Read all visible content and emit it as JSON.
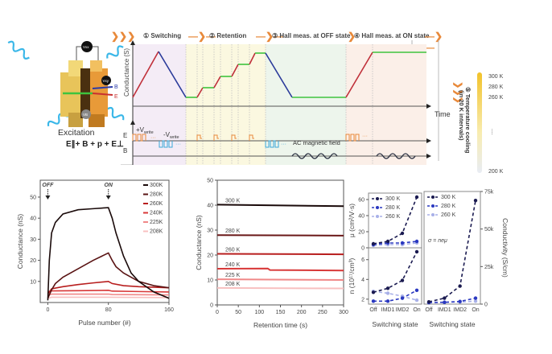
{
  "schematic": {
    "steps": [
      {
        "num": "①",
        "label": "Switching"
      },
      {
        "num": "②",
        "label": "Retention"
      },
      {
        "num": "③",
        "label": "Hall meas. at OFF state"
      },
      {
        "num": "④",
        "label": "Hall meas. at ON state"
      }
    ],
    "step5": {
      "num": "⑤",
      "label": "Temperature cooling",
      "sublabel": "(in 20 K intervals)"
    },
    "temp_scale": [
      "300 K",
      "280 K",
      "260 K",
      "....",
      "200 K"
    ],
    "conductance_axis": "Conductance (S)",
    "time_axis": "Time",
    "e_row": "E",
    "b_row": "B",
    "vwrite_pos": "+V",
    "vwrite_neg": "-V",
    "vwrite_sub": "write",
    "ac_field": "AC magnetic field",
    "ellipsis": "···",
    "device": {
      "excitation_label": "Excitation",
      "formula": "E∥+ B + p + E⊥",
      "meters": [
        "Vxx",
        "Vxy",
        "VB"
      ],
      "arrows": [
        "B",
        "E"
      ],
      "wave_label": "p"
    },
    "colors": {
      "rise": "#c0303a",
      "fall": "#2a3a9a",
      "hold": "#3ec43e",
      "pulse_e": "#e8893a",
      "pulse_b": "#3aa7d8",
      "temp_top": "#f2c22a"
    }
  },
  "chart_data": [
    {
      "type": "line",
      "title": "",
      "xlabel": "Pulse number (#)",
      "ylabel": "Conductance (nS)",
      "xlim": [
        -10,
        160
      ],
      "ylim": [
        0,
        58
      ],
      "xticks": [
        0,
        80,
        160
      ],
      "yticks": [
        10,
        20,
        30,
        40,
        50
      ],
      "annotations": [
        {
          "text": "OFF",
          "x": 0
        },
        {
          "text": "ON",
          "x": 80
        }
      ],
      "legend_position": "top-right",
      "series": [
        {
          "name": "300K",
          "color": "#1a0a0a",
          "x": [
            0,
            2,
            5,
            10,
            20,
            40,
            60,
            80,
            85,
            90,
            100,
            110,
            120,
            140,
            160
          ],
          "y": [
            1,
            20,
            33,
            38,
            42,
            44,
            44.5,
            45,
            40,
            33,
            22,
            14,
            10,
            5,
            2
          ]
        },
        {
          "name": "280K",
          "color": "#5a1414",
          "x": [
            0,
            5,
            10,
            20,
            40,
            60,
            80,
            85,
            90,
            100,
            120,
            140,
            160
          ],
          "y": [
            2,
            6,
            9,
            12,
            16,
            20,
            23.5,
            20,
            17,
            14,
            10,
            8,
            7
          ]
        },
        {
          "name": "260K",
          "color": "#b81e1e",
          "x": [
            0,
            5,
            20,
            40,
            60,
            80,
            85,
            100,
            120,
            160
          ],
          "y": [
            4,
            6.5,
            7.5,
            8.5,
            9.3,
            10,
            9,
            8,
            7.5,
            7
          ]
        },
        {
          "name": "240K",
          "color": "#d83838",
          "x": [
            0,
            5,
            40,
            80,
            85,
            120,
            160
          ],
          "y": [
            5,
            5.5,
            5.6,
            5.8,
            5.4,
            5.2,
            5
          ]
        },
        {
          "name": "225K",
          "color": "#f08888",
          "x": [
            0,
            5,
            80,
            85,
            160
          ],
          "y": [
            3.5,
            4,
            4,
            3.8,
            3.6
          ]
        },
        {
          "name": "208K",
          "color": "#f8c0c0",
          "x": [
            0,
            5,
            80,
            160
          ],
          "y": [
            2,
            2.5,
            2.5,
            2.3
          ]
        }
      ]
    },
    {
      "type": "line",
      "title": "",
      "xlabel": "Retention time (s)",
      "ylabel": "Conductance (nS)",
      "xlim": [
        0,
        300
      ],
      "ylim": [
        0,
        50
      ],
      "xticks": [
        0,
        50,
        100,
        150,
        200,
        250,
        300
      ],
      "yticks": [
        0,
        10,
        20,
        30,
        40,
        50
      ],
      "series": [
        {
          "name": "300 K",
          "color": "#1a0a0a",
          "x": [
            0,
            300
          ],
          "y": [
            40.2,
            39.6
          ]
        },
        {
          "name": "280 K",
          "color": "#6a1818",
          "x": [
            0,
            300
          ],
          "y": [
            28,
            27.8
          ]
        },
        {
          "name": "260 K",
          "color": "#b81e1e",
          "x": [
            0,
            300
          ],
          "y": [
            20.5,
            20.3
          ]
        },
        {
          "name": "240 K",
          "color": "#d83838",
          "x": [
            0,
            120,
            125,
            300
          ],
          "y": [
            14.5,
            14.6,
            14,
            13.8
          ]
        },
        {
          "name": "225 K",
          "color": "#f08888",
          "x": [
            0,
            300
          ],
          "y": [
            10.3,
            10
          ]
        },
        {
          "name": "208 K",
          "color": "#f8c0c0",
          "x": [
            0,
            300
          ],
          "y": [
            6.8,
            6.6
          ]
        }
      ]
    },
    {
      "type": "line",
      "title": "",
      "xlabel": "",
      "ylabel": "μ (cm²/V·s)",
      "categories": [
        "Off",
        "IMD1",
        "IMD2",
        "On"
      ],
      "ylim": [
        0,
        68
      ],
      "yticks": [
        0,
        20,
        40,
        60
      ],
      "legend_position": "top-left",
      "series": [
        {
          "name": "300 K",
          "color": "#1a1a50",
          "values": [
            5,
            8,
            18,
            63
          ]
        },
        {
          "name": "280 K",
          "color": "#2a38c0",
          "values": [
            4,
            6,
            6,
            8
          ]
        },
        {
          "name": "260 K",
          "color": "#a8b0e8",
          "values": [
            3,
            4,
            4,
            6
          ]
        }
      ]
    },
    {
      "type": "line",
      "title": "",
      "xlabel": "Switching state",
      "ylabel": "n (10¹⁷/cm³)",
      "categories": [
        "Off",
        "IMD1",
        "IMD2",
        "On"
      ],
      "ylim": [
        1.5,
        7.2
      ],
      "yticks": [
        2,
        4,
        6
      ],
      "series": [
        {
          "name": "300 K",
          "color": "#1a1a50",
          "values": [
            2.7,
            3.1,
            3.9,
            6.8
          ]
        },
        {
          "name": "280 K",
          "color": "#2a38c0",
          "values": [
            1.8,
            1.8,
            2.1,
            2.9
          ]
        },
        {
          "name": "260 K",
          "color": "#a8b0e8",
          "values": [
            2.8,
            2.6,
            2.3,
            1.9
          ]
        }
      ]
    },
    {
      "type": "line",
      "title": "",
      "xlabel": "Switching state",
      "ylabel": "Conductivity (S/cm)",
      "categories": [
        "Off",
        "IMD1",
        "IMD2",
        "On"
      ],
      "ylim": [
        0,
        75000
      ],
      "yticks": [
        "0",
        "25k",
        "50k",
        "75k"
      ],
      "ytick_values": [
        0,
        25000,
        50000,
        75000
      ],
      "annotation": "σ = neμ",
      "legend_position": "top-left",
      "series": [
        {
          "name": "300 K",
          "color": "#1a1a50",
          "values": [
            1500,
            4000,
            12000,
            69000
          ]
        },
        {
          "name": "280 K",
          "color": "#2a38c0",
          "values": [
            1000,
            1200,
            1800,
            4000
          ]
        },
        {
          "name": "260 K",
          "color": "#a8b0e8",
          "values": [
            1200,
            1300,
            1400,
            2000
          ]
        }
      ]
    }
  ]
}
